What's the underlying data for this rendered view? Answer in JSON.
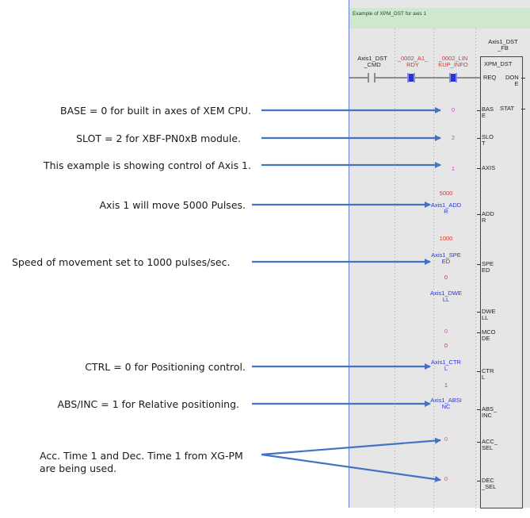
{
  "annotations": [
    {
      "text": "BASE = 0 for built in axes of XEM CPU."
    },
    {
      "text": "SLOT = 2 for XBF-PN0xB module."
    },
    {
      "text": "This example is showing control of Axis 1."
    },
    {
      "text": "Axis 1 will move 5000 Pulses."
    },
    {
      "text": "Speed of movement set to 1000 pulses/sec."
    },
    {
      "text": "CTRL = 0 for Positioning control."
    },
    {
      "text": "ABS/INC = 1 for Relative positioning."
    },
    {
      "text": "Acc. Time 1 and Dec. Time 1 from XG-PM"
    },
    {
      "text": "are being used."
    }
  ],
  "ladder": {
    "rung_comment": "Example of XPM_DST for axis 1",
    "contacts": [
      {
        "l1": "Axis1_DST",
        "l2": "_CMD"
      },
      {
        "l1": "_0002_A1_",
        "l2": "RDY"
      },
      {
        "l1": "_0002_LIN",
        "l2": "KUP_INFO"
      }
    ],
    "fb_instance": {
      "l1": "Axis1_DST",
      "l2": "_FB"
    },
    "fb_type": "XPM_DST",
    "inputs": {
      "base": "0",
      "slot": "2",
      "axis": "1",
      "addr_const": "5000",
      "addr_var1": "Axis1_ADD",
      "addr_var2": "R",
      "speed_const": "1000",
      "speed_var1": "Axis1_SPE",
      "speed_var2": "ED",
      "dwell_const": "0",
      "dwell_var1": "Axis1_DWE",
      "dwell_var2": "LL",
      "mcode": "0",
      "ctrl_const": "0",
      "ctrl_var1": "Axis1_CTR",
      "ctrl_var2": "L",
      "absinc_const": "1",
      "absinc_var1": "Axis1_ABSI",
      "absinc_var2": "NC",
      "acc_sel": "0",
      "dec_sel": "0"
    },
    "pins": {
      "req": "REQ",
      "done1": "DON",
      "done2": "E",
      "stat": "STAT",
      "bas1": "BAS",
      "bas2": "E",
      "slo1": "SLO",
      "slo2": "T",
      "axis": "AXIS",
      "add1": "ADD",
      "add2": "R",
      "spe1": "SPE",
      "spe2": "ED",
      "dwe1": "DWE",
      "dwe2": "LL",
      "mco1": "MCO",
      "mco2": "DE",
      "ctr1": "CTR",
      "ctr2": "L",
      "abs1": "ABS_",
      "abs2": "INC",
      "acc1": "ACC_",
      "acc2": "SEL",
      "dec1": "DEC",
      "dec2": "_SEL"
    },
    "colors": {
      "const": "#e23ad6",
      "const_red": "#e0312f",
      "variable": "#2a35d8",
      "comment_bg": "#cfe6cf",
      "arrow": "#4472c4"
    }
  }
}
